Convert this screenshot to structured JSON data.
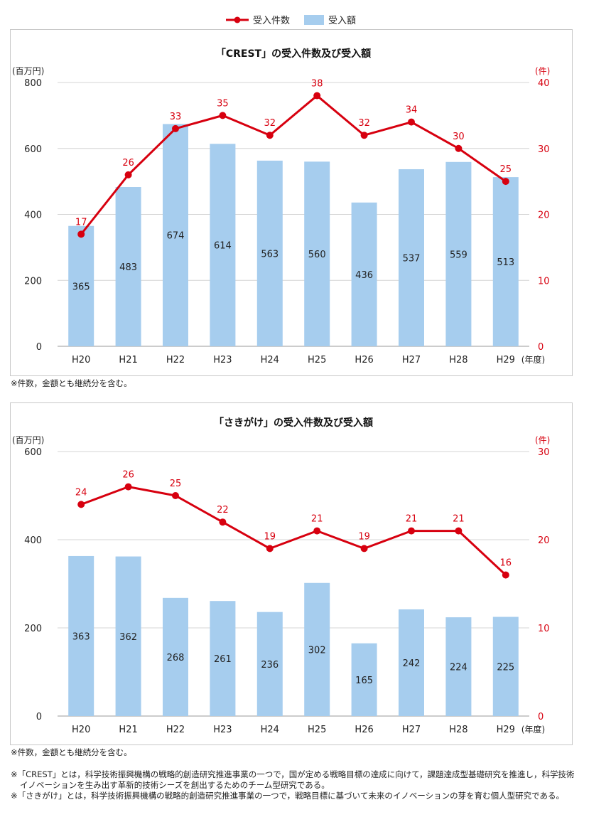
{
  "legend": {
    "line_label": "受入件数",
    "bar_label": "受入額",
    "line_color": "#d7000f",
    "bar_color": "#a6cdee"
  },
  "chart_data": [
    {
      "type": "bar+line",
      "title": "「CREST」の受入件数及び受入額",
      "categories": [
        "H20",
        "H21",
        "H22",
        "H23",
        "H24",
        "H25",
        "H26",
        "H27",
        "H28",
        "H29"
      ],
      "x_unit": "(年度)",
      "left_axis": {
        "label": "(百万円)",
        "range": [
          0,
          800
        ],
        "ticks": [
          0,
          200,
          400,
          600,
          800
        ]
      },
      "right_axis": {
        "label": "(件)",
        "range": [
          0,
          40
        ],
        "ticks": [
          0,
          10,
          20,
          30,
          40
        ]
      },
      "series": [
        {
          "name": "受入額",
          "type": "bar",
          "axis": "left",
          "values": [
            365,
            483,
            674,
            614,
            563,
            560,
            436,
            537,
            559,
            513
          ]
        },
        {
          "name": "受入件数",
          "type": "line",
          "axis": "right",
          "values": [
            17,
            26,
            33,
            35,
            32,
            38,
            32,
            34,
            30,
            25
          ]
        }
      ],
      "note": "※件数，金額とも継続分を含む。"
    },
    {
      "type": "bar+line",
      "title": "「さきがけ」の受入件数及び受入額",
      "categories": [
        "H20",
        "H21",
        "H22",
        "H23",
        "H24",
        "H25",
        "H26",
        "H27",
        "H28",
        "H29"
      ],
      "x_unit": "(年度)",
      "left_axis": {
        "label": "(百万円)",
        "range": [
          0,
          600
        ],
        "ticks": [
          0,
          200,
          400,
          600
        ]
      },
      "right_axis": {
        "label": "(件)",
        "range": [
          0,
          30
        ],
        "ticks": [
          0,
          10,
          20,
          30
        ]
      },
      "series": [
        {
          "name": "受入額",
          "type": "bar",
          "axis": "left",
          "values": [
            363,
            362,
            268,
            261,
            236,
            302,
            165,
            242,
            224,
            225
          ]
        },
        {
          "name": "受入件数",
          "type": "line",
          "axis": "right",
          "values": [
            24,
            26,
            25,
            22,
            19,
            21,
            19,
            21,
            21,
            16
          ]
        }
      ],
      "note": "※件数，金額とも継続分を含む。"
    }
  ],
  "footnotes": [
    "※「CREST」とは，科学技術振興機構の戦略的創造研究推進事業の一つで，国が定める戦略目標の達成に向けて，課題達成型基礎研究を推進し，科学技術イノベーションを生み出す革新的技術シーズを創出するためのチーム型研究である。",
    "※「さきがけ」とは，科学技術振興機構の戦略的創造研究推進事業の一つで，戦略目標に基づいて未来のイノベーションの芽を育む個人型研究である。"
  ]
}
